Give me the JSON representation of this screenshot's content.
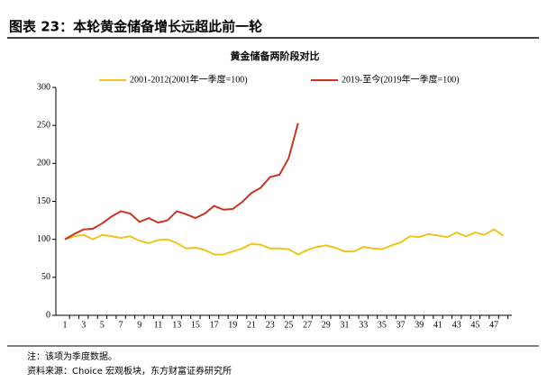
{
  "header": "图表 23：本轮黄金储备增长远超此前一轮",
  "chart_data": {
    "type": "line",
    "title": "黄金储备两阶段对比",
    "categories": [
      "1",
      null,
      "3",
      null,
      "5",
      null,
      "7",
      null,
      "9",
      null,
      "11",
      null,
      "13",
      null,
      "15",
      null,
      "17",
      null,
      "19",
      null,
      "21",
      null,
      "23",
      null,
      "25",
      null,
      "27",
      null,
      "29",
      null,
      "31",
      null,
      "33",
      null,
      "35",
      null,
      "37",
      null,
      "39",
      null,
      "41",
      null,
      "43",
      null,
      "45",
      null,
      "47",
      null
    ],
    "series": [
      {
        "name": "2001-2012(2001年一季度=100)",
        "color": "#f2c31a",
        "values": [
          100,
          104,
          106,
          100,
          106,
          104,
          102,
          104,
          98,
          95,
          99,
          100,
          95,
          88,
          89,
          86,
          80,
          80,
          84,
          88,
          94,
          93,
          88,
          88,
          87,
          80,
          86,
          90,
          92,
          89,
          84,
          84,
          90,
          88,
          87,
          92,
          96,
          104,
          103,
          107,
          105,
          103,
          109,
          104,
          109,
          106,
          113,
          105
        ]
      },
      {
        "name": "2019-至今(2019年一季度=100)",
        "color": "#c9361f",
        "values": [
          100,
          107,
          113,
          114,
          121,
          130,
          137,
          134,
          123,
          128,
          122,
          125,
          137,
          133,
          128,
          134,
          144,
          139,
          140,
          149,
          161,
          168,
          182,
          185,
          207,
          253,
          null,
          null,
          null,
          null,
          null,
          null,
          null,
          null,
          null,
          null,
          null,
          null,
          null,
          null,
          null,
          null,
          null,
          null,
          null,
          null,
          null,
          null
        ]
      }
    ],
    "ylim": [
      0,
      300
    ],
    "yticks": [
      0,
      50,
      100,
      150,
      200,
      250,
      300
    ]
  },
  "notes": [
    "注：该项为季度数据。",
    "资料来源：Choice 宏观板块，东方财富证券研究所"
  ]
}
